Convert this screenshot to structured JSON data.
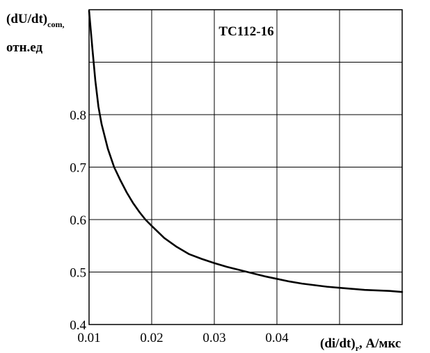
{
  "chart_data": {
    "type": "line",
    "title": "TC112-16",
    "ylabel": {
      "main": "(dU/dt)",
      "sub": "com,",
      "line2": "отн.ед"
    },
    "xlabel": {
      "main": "(di/dt)",
      "sub": "r",
      "rest": ", А/мкс"
    },
    "xlim": [
      0.01,
      0.06
    ],
    "ylim": [
      0.4,
      1.0
    ],
    "x_ticks": [
      "0.01",
      "0.02",
      "0.03",
      "0.04"
    ],
    "y_ticks": [
      "0.4",
      "0.5",
      "0.6",
      "0.7",
      "0.8"
    ],
    "grid": true,
    "series": [
      {
        "x": [
          0.01,
          0.0105,
          0.011,
          0.0115,
          0.012,
          0.013,
          0.014,
          0.015,
          0.016,
          0.017,
          0.018,
          0.019,
          0.02,
          0.022,
          0.024,
          0.026,
          0.028,
          0.03,
          0.032,
          0.034,
          0.036,
          0.038,
          0.04,
          0.042,
          0.044,
          0.046,
          0.048,
          0.05,
          0.052,
          0.054,
          0.056,
          0.058,
          0.06
        ],
        "y": [
          0.998,
          0.93,
          0.865,
          0.815,
          0.782,
          0.735,
          0.7,
          0.675,
          0.652,
          0.632,
          0.615,
          0.6,
          0.588,
          0.565,
          0.548,
          0.534,
          0.525,
          0.517,
          0.51,
          0.504,
          0.498,
          0.492,
          0.487,
          0.482,
          0.478,
          0.475,
          0.472,
          0.47,
          0.468,
          0.466,
          0.465,
          0.464,
          0.462
        ]
      }
    ]
  }
}
